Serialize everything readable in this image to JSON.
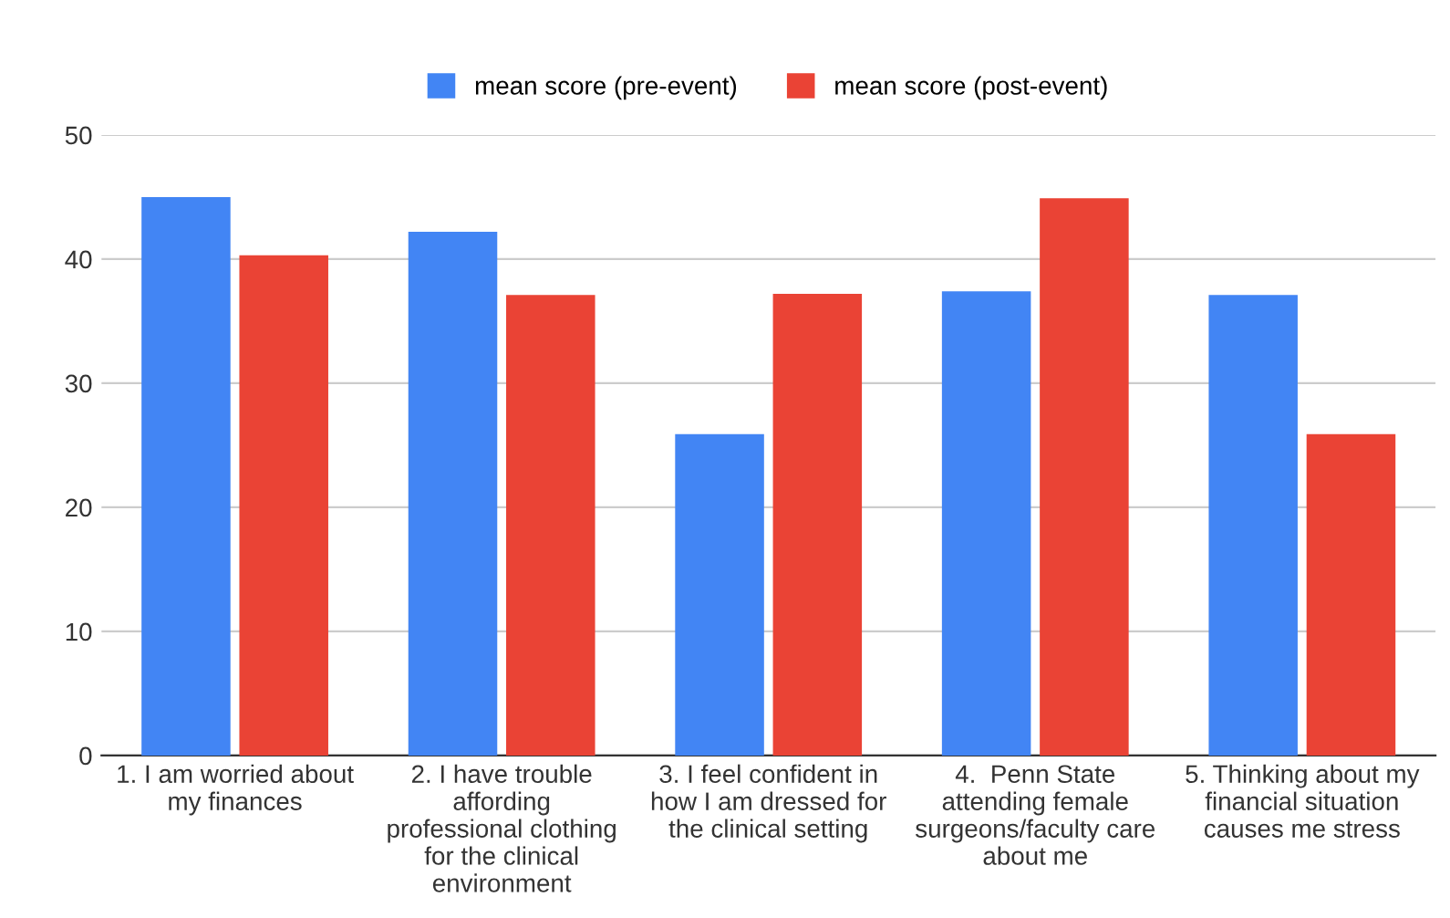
{
  "chart_data": {
    "type": "bar",
    "categories": [
      "1. I am worried about\nmy finances",
      "2. I have trouble\naffording\nprofessional clothing\nfor the clinical\nenvironment",
      "3. I feel confident in\nhow I am dressed for\nthe clinical setting",
      "4.  Penn State\nattending female\nsurgeons/faculty care\nabout me",
      "5. Thinking about my\nfinancial situation\ncauses me stress"
    ],
    "series": [
      {
        "name": "mean score (pre-event)",
        "color": "#4285f4",
        "values": [
          45.0,
          42.2,
          25.9,
          37.4,
          37.1
        ]
      },
      {
        "name": "mean score (post-event)",
        "color": "#ea4335",
        "values": [
          40.3,
          37.1,
          37.2,
          44.9,
          25.9
        ]
      }
    ],
    "ylim": [
      0,
      50
    ],
    "yticks": [
      0,
      10,
      20,
      30,
      40,
      50
    ],
    "grid": "y",
    "legend": "top"
  }
}
